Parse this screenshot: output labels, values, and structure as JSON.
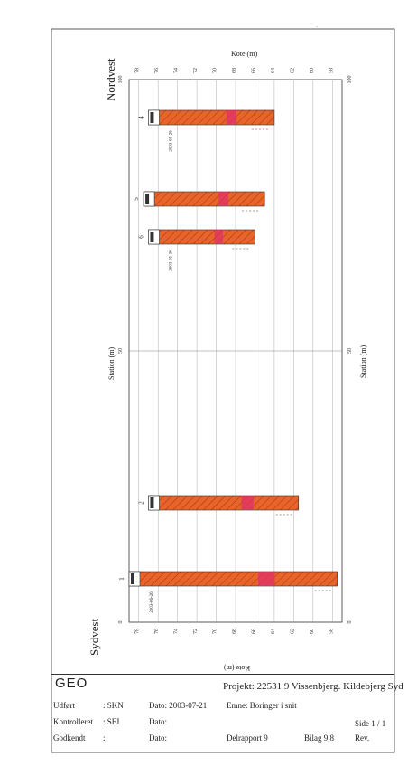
{
  "drawing": {
    "side_left": "Sydvest",
    "side_right": "Nordvest",
    "axis_top_label": "Kote (m)",
    "axis_bottom_label": "Kote (m)",
    "station_label": "Station (m)",
    "station_ticks": [
      "0",
      "50",
      "100"
    ],
    "kote_ticks": [
      "78",
      "76",
      "74",
      "72",
      "70",
      "68",
      "66",
      "64",
      "62",
      "60",
      "58"
    ],
    "borings": [
      {
        "id": "1",
        "top": 79,
        "bottom": 57.5,
        "station": 8,
        "date": "2003-06-26"
      },
      {
        "id": "2",
        "top": 77,
        "bottom": 61.5,
        "station": 22,
        "date": ""
      },
      {
        "id": "6",
        "top": 77,
        "bottom": 66,
        "station": 71,
        "date": "2003-05-30"
      },
      {
        "id": "5",
        "top": 77.5,
        "bottom": 65,
        "station": 78,
        "date": ""
      },
      {
        "id": "4",
        "top": 77,
        "bottom": 64,
        "station": 93,
        "date": "2003-05-26"
      }
    ],
    "colors": {
      "soil": "#e8642a",
      "soil_dark": "#c8481c",
      "accent": "#e0306a",
      "frame": "#333333"
    }
  },
  "titleblock": {
    "logo": "GEO",
    "project": "Projekt: 22531.9 Vissenbjerg. Kildebjerg Syd",
    "udfort_label": "Udført",
    "udfort_value": ": SKN",
    "dato1": "Dato: 2003-07-21",
    "emne": "Emne: Boringer i snit",
    "kontrol_label": "Kontrolleret",
    "kontrol_value": ": SFJ",
    "dato2": "Dato:",
    "side": "Side 1 / 1",
    "godkendt_label": "Godkendt",
    "godkendt_value": ":",
    "dato3": "Dato:",
    "delrapport": "Delrapport  9",
    "bilag": "Bilag 9.8",
    "rev": "Rev."
  }
}
